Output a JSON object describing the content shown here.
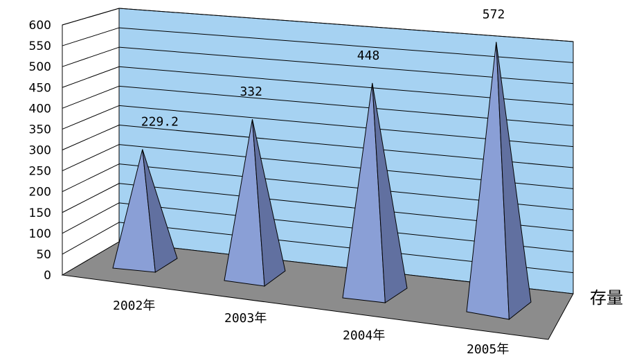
{
  "chart_data": {
    "type": "bar",
    "shape": "3d-pyramid",
    "categories": [
      "2002年",
      "2003年",
      "2004年",
      "2005年"
    ],
    "series": [
      {
        "name": "存量",
        "values": [
          229.2,
          332,
          448,
          572
        ]
      }
    ],
    "data_labels": [
      "229.2",
      "332",
      "448",
      "572"
    ],
    "ylim": [
      0,
      600
    ],
    "yticks": [
      0,
      50,
      100,
      150,
      200,
      250,
      300,
      350,
      400,
      450,
      500,
      550,
      600
    ],
    "grid": true,
    "legend": "right",
    "colors": {
      "back_wall": "#a6d2f2",
      "floor": "#8c8c8c",
      "pyramid_front": "#8a9fd6",
      "pyramid_side": "#6170a0",
      "grid_line": "#000000"
    }
  }
}
